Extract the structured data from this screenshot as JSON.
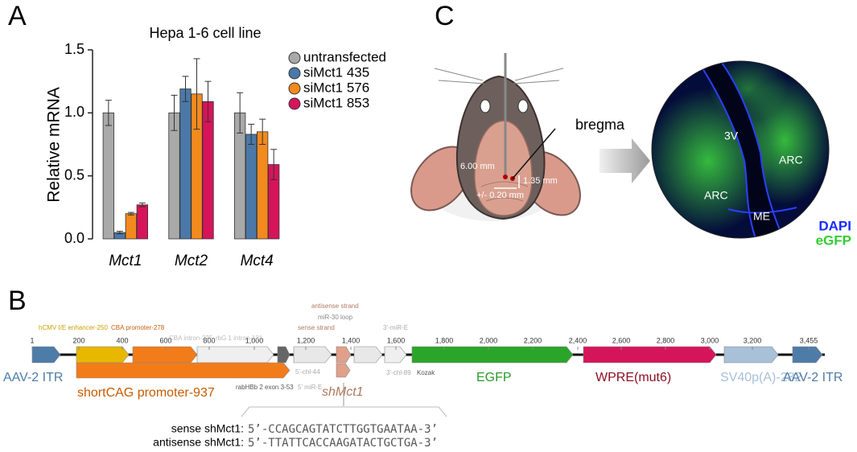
{
  "panel_labels": [
    "A",
    "B",
    "C"
  ],
  "chart_data": {
    "type": "bar",
    "title": "Hepa 1-6 cell line",
    "y_label": "Relative mRNA",
    "categories": [
      "Mct1",
      "Mct2",
      "Mct4"
    ],
    "series": [
      {
        "name": "untransfected",
        "color": "#a9a9a9",
        "values": [
          1.0,
          1.0,
          1.0
        ],
        "errors": [
          0.1,
          0.14,
          0.16
        ]
      },
      {
        "name": "siMct1 435",
        "color": "#4a78a8",
        "values": [
          0.05,
          1.19,
          0.83
        ],
        "errors": [
          0.01,
          0.1,
          0.08
        ]
      },
      {
        "name": "siMct1 576",
        "color": "#f28a1e",
        "values": [
          0.2,
          1.15,
          0.85
        ],
        "errors": [
          0.01,
          0.28,
          0.1
        ]
      },
      {
        "name": "siMct1 853",
        "color": "#d6145a",
        "values": [
          0.27,
          1.09,
          0.59
        ],
        "errors": [
          0.015,
          0.16,
          0.12
        ]
      }
    ],
    "ylim": [
      0,
      1.5
    ],
    "yticks": [
      {
        "value": 0,
        "label": "0.0"
      },
      0.5,
      {
        "value": 1,
        "label": "1.0"
      },
      1.5
    ]
  },
  "injection": {
    "landmark": "bregma",
    "depth": "6.00 mm",
    "ap": "1.35 mm",
    "ml": "+/- 0.20 mm"
  },
  "histology": {
    "regions": [
      "3V",
      "ARC",
      "ARC",
      "ME"
    ],
    "stains": [
      {
        "name": "DAPI",
        "color": "#1a2cff"
      },
      {
        "name": "eGFP",
        "color": "#33cc33"
      }
    ]
  },
  "construct": {
    "ticks": [
      "1",
      "200",
      "400",
      "600",
      "800",
      "1,000",
      "1,200",
      "1,400",
      "1,600",
      "1,800",
      "2,000",
      "2,200",
      "2,400",
      "2,600",
      "2,800",
      "3,000",
      "3,200",
      "3,455"
    ],
    "features": [
      "hCMV I/E enhancer-250",
      "CBA promoter-278",
      "CBA intron-225",
      "rbG 1 intron-131",
      "sense strand",
      "miR-30 loop",
      "antisense strand",
      "3’-miR-E",
      "5’-chl-44",
      "5’ miR-E",
      "rabHBb 2 exon 3-53",
      "3’-chl-89",
      "Kozak",
      "AAV-2 ITR",
      "shortCAG promoter-937",
      "shMct1",
      "EGFP",
      "WPRE(mut6)",
      "SV40p(A)-232",
      "AAV-2 ITR"
    ],
    "sequences": [
      {
        "label": "sense shMct1:",
        "seq": "5’-CCAGCAGTATCTTGGTGAATAA-3’"
      },
      {
        "label": "antisense shMct1:",
        "seq": "5’-TTATTCACCAAGATACTGCTGA-3’"
      }
    ]
  }
}
